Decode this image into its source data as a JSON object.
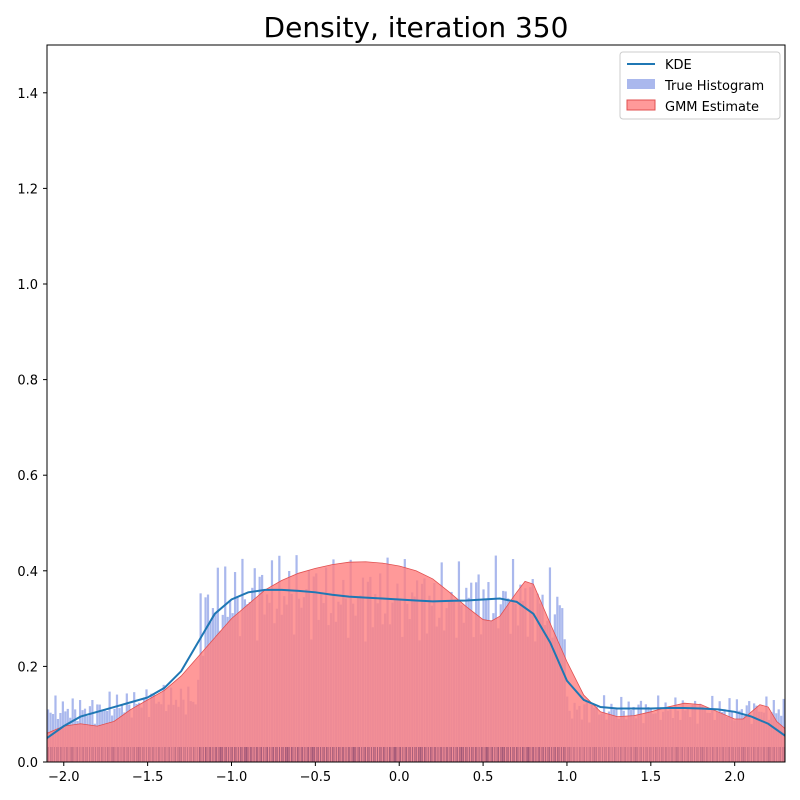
{
  "chart_data": {
    "type": "area",
    "title": "Density, iteration 350",
    "xlabel": "",
    "ylabel": "",
    "xlim": [
      -2.1,
      2.3
    ],
    "ylim": [
      0.0,
      1.5
    ],
    "xticks": [
      -2.0,
      -1.5,
      -1.0,
      -0.5,
      0.0,
      0.5,
      1.0,
      1.5,
      2.0
    ],
    "xtick_labels": [
      "−2.0",
      "−1.5",
      "−1.0",
      "−0.5",
      "0.0",
      "0.5",
      "1.0",
      "1.5",
      "2.0"
    ],
    "yticks": [
      0.0,
      0.2,
      0.4,
      0.6,
      0.8,
      1.0,
      1.2,
      1.4
    ],
    "ytick_labels": [
      "0.0",
      "0.2",
      "0.4",
      "0.6",
      "0.8",
      "1.0",
      "1.2",
      "1.4"
    ],
    "grid": false,
    "legend_position": "top-right",
    "histogram_bins": 300,
    "series": [
      {
        "name": "KDE",
        "kind": "line",
        "color": "#1f77b4",
        "x": [
          -2.1,
          -2.0,
          -1.9,
          -1.8,
          -1.7,
          -1.6,
          -1.5,
          -1.4,
          -1.3,
          -1.2,
          -1.1,
          -1.0,
          -0.9,
          -0.8,
          -0.7,
          -0.6,
          -0.5,
          -0.4,
          -0.3,
          -0.2,
          -0.1,
          0.0,
          0.1,
          0.2,
          0.3,
          0.4,
          0.5,
          0.6,
          0.7,
          0.8,
          0.9,
          1.0,
          1.1,
          1.2,
          1.3,
          1.4,
          1.5,
          1.6,
          1.7,
          1.8,
          1.9,
          2.0,
          2.1,
          2.2,
          2.3
        ],
        "y": [
          0.05,
          0.075,
          0.095,
          0.105,
          0.115,
          0.125,
          0.135,
          0.155,
          0.19,
          0.25,
          0.31,
          0.34,
          0.355,
          0.36,
          0.36,
          0.358,
          0.355,
          0.35,
          0.346,
          0.344,
          0.342,
          0.34,
          0.338,
          0.336,
          0.337,
          0.338,
          0.34,
          0.342,
          0.335,
          0.31,
          0.25,
          0.17,
          0.13,
          0.115,
          0.112,
          0.112,
          0.112,
          0.113,
          0.113,
          0.112,
          0.11,
          0.105,
          0.095,
          0.08,
          0.055
        ]
      },
      {
        "name": "True Histogram",
        "kind": "histogram",
        "color": "#aab8ed",
        "x": [
          -2.1,
          -2.0,
          -1.9,
          -1.8,
          -1.7,
          -1.6,
          -1.5,
          -1.4,
          -1.3,
          -1.2,
          -1.19,
          -1.1,
          -1.0,
          -0.9,
          -0.8,
          -0.7,
          -0.6,
          -0.5,
          -0.4,
          -0.3,
          -0.2,
          -0.1,
          0.0,
          0.1,
          0.2,
          0.3,
          0.4,
          0.5,
          0.6,
          0.7,
          0.8,
          0.9,
          0.99,
          1.0,
          1.1,
          1.2,
          1.3,
          1.4,
          1.5,
          1.6,
          1.7,
          1.8,
          1.9,
          2.0,
          2.1,
          2.2,
          2.3
        ],
        "y": [
          0.11,
          0.11,
          0.11,
          0.11,
          0.12,
          0.12,
          0.13,
          0.13,
          0.13,
          0.13,
          0.3,
          0.33,
          0.34,
          0.35,
          0.35,
          0.35,
          0.35,
          0.35,
          0.34,
          0.34,
          0.34,
          0.34,
          0.34,
          0.34,
          0.33,
          0.33,
          0.34,
          0.34,
          0.34,
          0.34,
          0.33,
          0.32,
          0.32,
          0.11,
          0.11,
          0.11,
          0.11,
          0.11,
          0.11,
          0.11,
          0.11,
          0.11,
          0.11,
          0.11,
          0.11,
          0.11,
          0.11
        ]
      },
      {
        "name": "GMM Estimate",
        "kind": "area",
        "color": "#ff7f7f",
        "x": [
          -2.1,
          -2.0,
          -1.9,
          -1.8,
          -1.7,
          -1.6,
          -1.5,
          -1.4,
          -1.3,
          -1.2,
          -1.1,
          -1.0,
          -0.9,
          -0.8,
          -0.7,
          -0.6,
          -0.5,
          -0.4,
          -0.3,
          -0.2,
          -0.1,
          0.0,
          0.1,
          0.2,
          0.3,
          0.4,
          0.5,
          0.55,
          0.6,
          0.7,
          0.75,
          0.8,
          0.9,
          1.0,
          1.1,
          1.2,
          1.3,
          1.4,
          1.5,
          1.6,
          1.7,
          1.8,
          1.9,
          2.0,
          2.05,
          2.1,
          2.15,
          2.2,
          2.25,
          2.3
        ],
        "y": [
          0.06,
          0.075,
          0.08,
          0.075,
          0.085,
          0.11,
          0.13,
          0.15,
          0.18,
          0.22,
          0.26,
          0.3,
          0.33,
          0.36,
          0.38,
          0.395,
          0.405,
          0.413,
          0.418,
          0.419,
          0.416,
          0.41,
          0.4,
          0.383,
          0.355,
          0.325,
          0.298,
          0.295,
          0.305,
          0.355,
          0.378,
          0.372,
          0.29,
          0.21,
          0.14,
          0.105,
          0.095,
          0.097,
          0.105,
          0.115,
          0.123,
          0.12,
          0.105,
          0.09,
          0.09,
          0.105,
          0.12,
          0.115,
          0.085,
          0.07
        ]
      }
    ]
  }
}
